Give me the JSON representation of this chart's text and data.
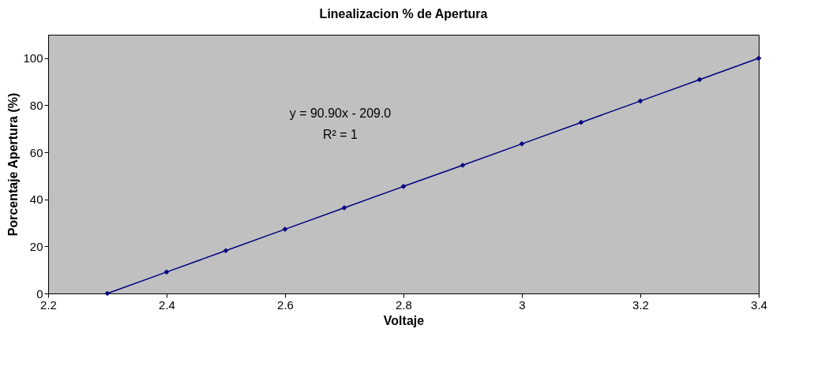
{
  "chart_data": {
    "type": "line",
    "title": "Linealizacion % de Apertura",
    "xlabel": "Voltaje",
    "ylabel": "Porcentaje Apertura (%)",
    "x": [
      2.3,
      2.4,
      2.5,
      2.6,
      2.7,
      2.8,
      2.9,
      3.0,
      3.1,
      3.2,
      3.3,
      3.4
    ],
    "series": [
      {
        "color": "#000080",
        "values": [
          0,
          9.1,
          18.2,
          27.3,
          36.4,
          45.5,
          54.5,
          63.6,
          72.7,
          81.8,
          90.9,
          100
        ]
      }
    ],
    "xlim": [
      2.2,
      3.4
    ],
    "xticks": [
      2.2,
      2.4,
      2.6,
      2.8,
      {
        "value": 3,
        "label": "3"
      },
      3.2,
      3.4
    ],
    "ylim": [
      0,
      110
    ],
    "yticks": [
      0,
      20,
      40,
      60,
      80,
      100
    ],
    "grid": false,
    "marker": "diamond",
    "line_style": "solid",
    "annotations": [
      "y = 90.90x - 209.0",
      "R² = 1"
    ]
  }
}
